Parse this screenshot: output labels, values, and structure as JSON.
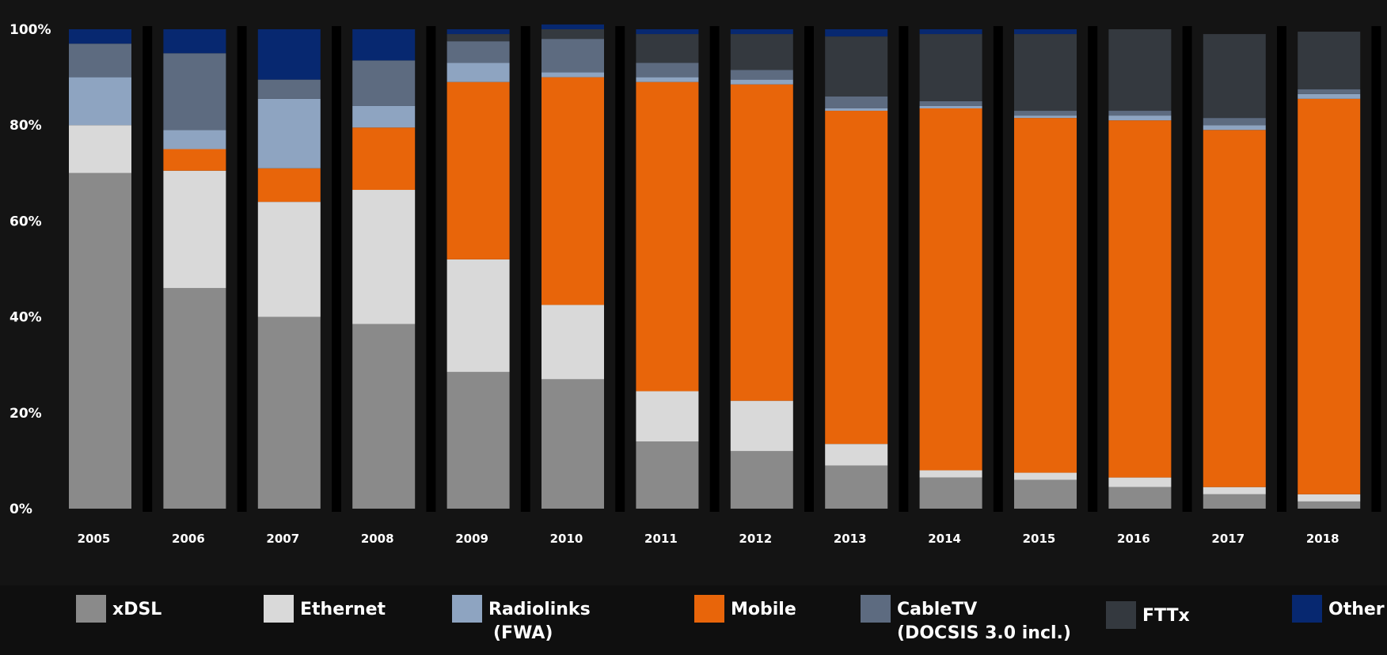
{
  "chart_data": {
    "type": "bar",
    "stacked": true,
    "categories": [
      "2005",
      "2006",
      "2007",
      "2008",
      "2009",
      "2010",
      "2011",
      "2012",
      "2013",
      "2014",
      "2015",
      "2016",
      "2017",
      "2018"
    ],
    "y_ticks": [
      "0%",
      "20%",
      "40%",
      "60%",
      "80%",
      "100%"
    ],
    "ylim": [
      0,
      100
    ],
    "grid": false,
    "legend_position": "bottom",
    "series": [
      {
        "name": "xDSL",
        "color": "#8a8a8a",
        "values": [
          70,
          46,
          40,
          38.5,
          28.5,
          27,
          14,
          12,
          9,
          6.5,
          6,
          4.5,
          3,
          1.5
        ]
      },
      {
        "name": "Ethernet",
        "color": "#d9d9d9",
        "values": [
          10,
          24.5,
          24,
          28,
          23.5,
          15.5,
          10.5,
          10.5,
          4.5,
          1.5,
          1.5,
          2,
          1.5,
          1.5
        ]
      },
      {
        "name": "Mobile",
        "color": "#e8650a",
        "values": [
          0,
          4.5,
          7,
          13,
          37,
          47.5,
          64.5,
          66,
          69.5,
          75.5,
          74,
          74.5,
          74.5,
          82.5
        ]
      },
      {
        "name": "Radiolinks",
        "sub": "(FWA)",
        "color": "#8ea4c1",
        "values": [
          10,
          4,
          14.5,
          4.5,
          4,
          1,
          1,
          1,
          0.5,
          0.5,
          0.5,
          1,
          1,
          1
        ]
      },
      {
        "name": "CableTV",
        "sub": "(DOCSIS 3.0 incl.)",
        "color": "#5d6b80",
        "values": [
          7,
          16,
          4,
          9.5,
          4.5,
          7,
          3,
          2,
          2.5,
          1,
          1,
          1,
          1.5,
          1
        ]
      },
      {
        "name": "FTTx",
        "color": "#34393f",
        "values": [
          0,
          0,
          0,
          0,
          1.5,
          2,
          6,
          7.5,
          12.5,
          14,
          16,
          17,
          17.5,
          12
        ]
      },
      {
        "name": "Other",
        "color": "#072870",
        "values": [
          3,
          5,
          10.5,
          6.5,
          1,
          1,
          1,
          1,
          1.5,
          1,
          1,
          0,
          0,
          0
        ]
      }
    ]
  }
}
